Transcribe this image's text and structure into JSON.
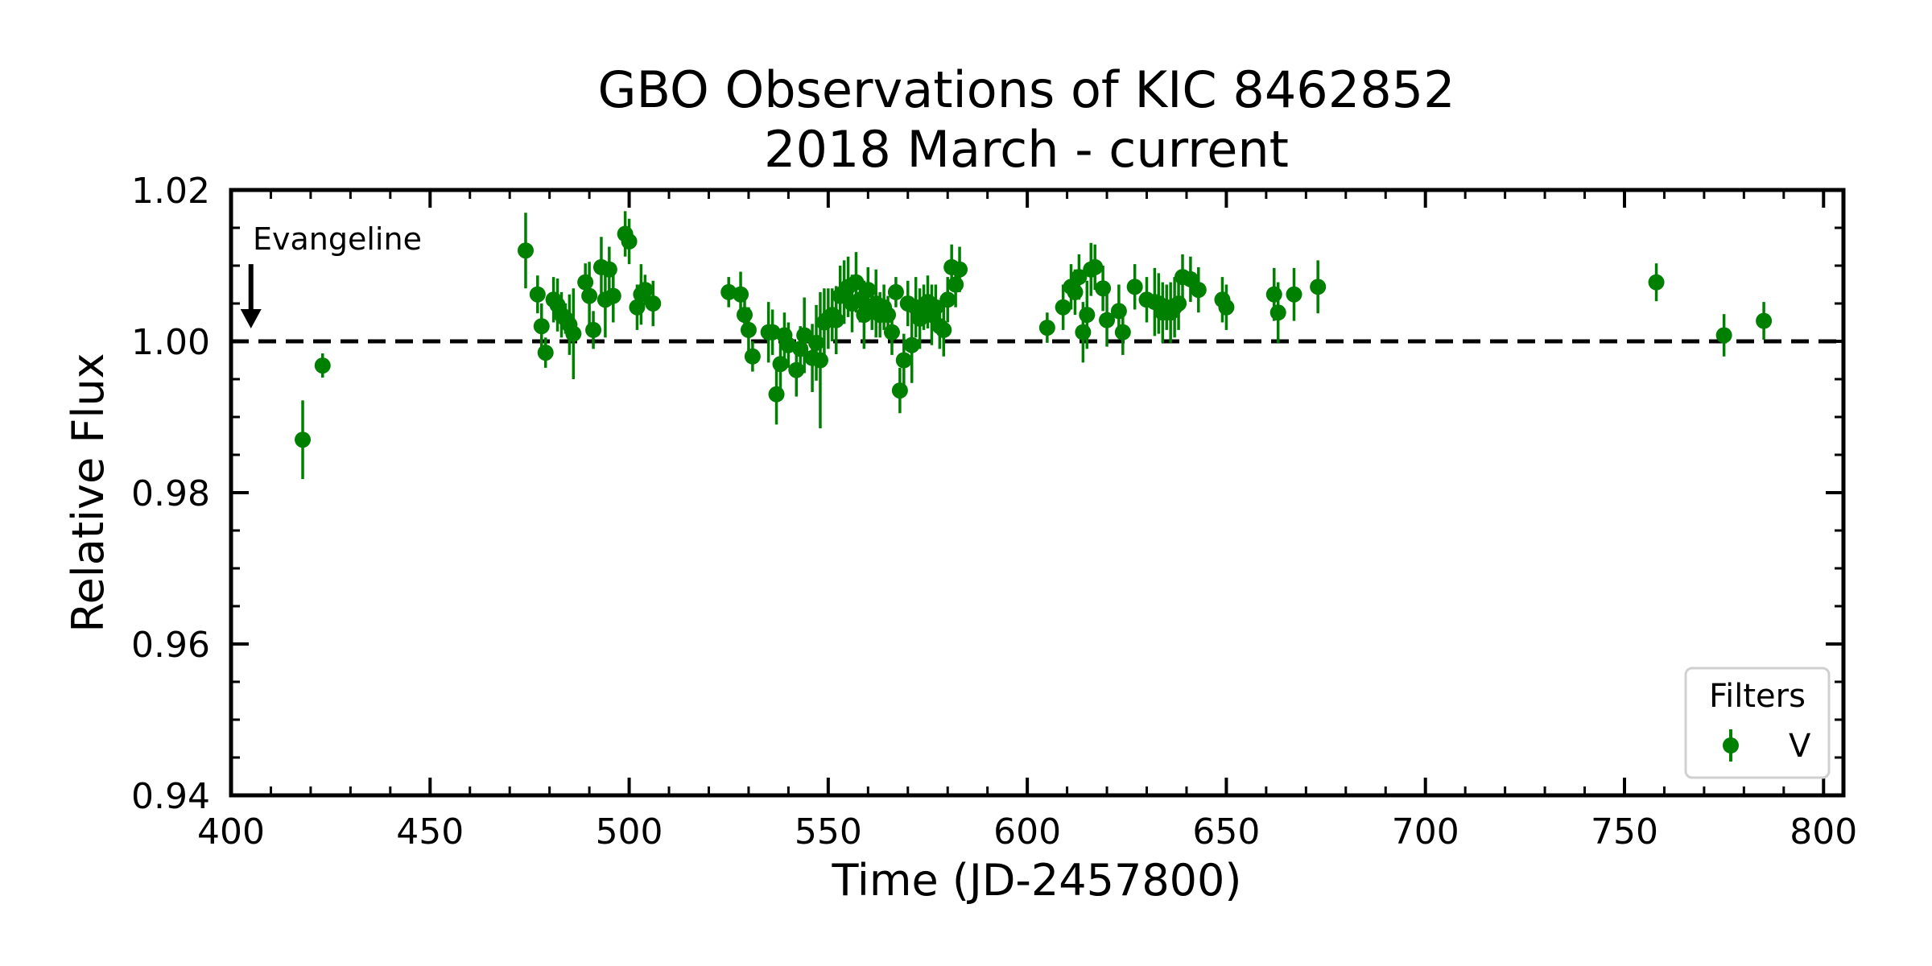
{
  "chart_data": {
    "type": "scatter",
    "title": [
      "GBO Observations of KIC 8462852",
      "2018 March - current"
    ],
    "xlabel": "Time (JD-2457800)",
    "ylabel": "Relative Flux",
    "xlim": [
      400,
      805
    ],
    "ylim": [
      0.94,
      1.02
    ],
    "xticks": [
      400,
      450,
      500,
      550,
      600,
      650,
      700,
      750,
      800
    ],
    "xtick_labels": [
      "400",
      "450",
      "500",
      "550",
      "600",
      "650",
      "700",
      "750",
      "800"
    ],
    "yticks": [
      0.94,
      0.96,
      0.98,
      1.0,
      1.02
    ],
    "ytick_labels": [
      "0.94",
      "0.96",
      "0.98",
      "1.00",
      "1.02"
    ],
    "grid": false,
    "reference_line": {
      "y": 1.0,
      "style": "dashed",
      "color": "#000000"
    },
    "annotation": {
      "text": "Evangeline",
      "x": 405,
      "arrow_from_y": 1.0102,
      "arrow_to_y": 1.0017
    },
    "legend": {
      "title": "Filters",
      "position": "lower-right"
    },
    "series": [
      {
        "name": "V",
        "color": "#008000",
        "points": [
          [
            418,
            0.987,
            0.0052
          ],
          [
            423,
            0.9968,
            0.0016
          ],
          [
            474,
            1.012,
            0.005
          ],
          [
            477,
            1.0062,
            0.0025
          ],
          [
            478,
            1.002,
            0.003
          ],
          [
            479,
            0.9985,
            0.002
          ],
          [
            481,
            1.0055,
            0.003
          ],
          [
            482,
            1.0048,
            0.0035
          ],
          [
            483,
            1.0035,
            0.003
          ],
          [
            484,
            1.003,
            0.002
          ],
          [
            485,
            1.0022,
            0.004
          ],
          [
            486,
            1.001,
            0.006
          ],
          [
            489,
            1.0078,
            0.0025
          ],
          [
            490,
            1.006,
            0.0045
          ],
          [
            491,
            1.0015,
            0.0025
          ],
          [
            493,
            1.0098,
            0.004
          ],
          [
            494,
            1.0055,
            0.005
          ],
          [
            495,
            1.0095,
            0.003
          ],
          [
            496,
            1.006,
            0.0035
          ],
          [
            499,
            1.0142,
            0.003
          ],
          [
            500,
            1.0132,
            0.003
          ],
          [
            502,
            1.0045,
            0.003
          ],
          [
            503,
            1.0062,
            0.004
          ],
          [
            504,
            1.0068,
            0.002
          ],
          [
            506,
            1.005,
            0.003
          ],
          [
            525,
            1.0065,
            0.002
          ],
          [
            528,
            1.0062,
            0.003
          ],
          [
            529,
            1.0035,
            0.0025
          ],
          [
            530,
            1.0015,
            0.003
          ],
          [
            531,
            0.998,
            0.002
          ],
          [
            535,
            1.0012,
            0.004
          ],
          [
            536,
            1.0012,
            0.003
          ],
          [
            537,
            0.993,
            0.004
          ],
          [
            538,
            0.997,
            0.0045
          ],
          [
            539,
            1.0008,
            0.003
          ],
          [
            540,
            0.9995,
            0.003
          ],
          [
            542,
            0.9962,
            0.0035
          ],
          [
            543,
            0.999,
            0.003
          ],
          [
            544,
            1.0008,
            0.005
          ],
          [
            546,
            0.9978,
            0.0045
          ],
          [
            547,
            0.9998,
            0.005
          ],
          [
            548,
            0.9975,
            0.009
          ],
          [
            549,
            1.0025,
            0.0045
          ],
          [
            550,
            1.003,
            0.004
          ],
          [
            551,
            1.0035,
            0.0035
          ],
          [
            552,
            1.0028,
            0.0045
          ],
          [
            553,
            1.006,
            0.004
          ],
          [
            554,
            1.0065,
            0.0042
          ],
          [
            555,
            1.0072,
            0.004
          ],
          [
            556,
            1.005,
            0.0038
          ],
          [
            557,
            1.0078,
            0.004
          ],
          [
            558,
            1.0055,
            0.003
          ],
          [
            559,
            1.0035,
            0.0045
          ],
          [
            560,
            1.0068,
            0.003
          ],
          [
            561,
            1.0045,
            0.003
          ],
          [
            562,
            1.005,
            0.0045
          ],
          [
            563,
            1.0035,
            0.003
          ],
          [
            564,
            1.0045,
            0.003
          ],
          [
            565,
            1.0035,
            0.0025
          ],
          [
            566,
            1.0012,
            0.003
          ],
          [
            567,
            1.0065,
            0.002
          ],
          [
            568,
            0.9935,
            0.003
          ],
          [
            569,
            0.9975,
            0.0035
          ],
          [
            570,
            1.005,
            0.003
          ],
          [
            571,
            0.9995,
            0.005
          ],
          [
            572,
            1.0045,
            0.004
          ],
          [
            573,
            1.003,
            0.004
          ],
          [
            574,
            1.0045,
            0.003
          ],
          [
            575,
            1.0052,
            0.0035
          ],
          [
            576,
            1.0035,
            0.004
          ],
          [
            577,
            1.0045,
            0.003
          ],
          [
            578,
            1.002,
            0.003
          ],
          [
            579,
            1.0015,
            0.0035
          ],
          [
            580,
            1.0055,
            0.003
          ],
          [
            581,
            1.0098,
            0.003
          ],
          [
            582,
            1.0075,
            0.003
          ],
          [
            583,
            1.0095,
            0.003
          ],
          [
            605,
            1.0018,
            0.002
          ],
          [
            609,
            1.0045,
            0.003
          ],
          [
            611,
            1.0072,
            0.003
          ],
          [
            612,
            1.0065,
            0.003
          ],
          [
            613,
            1.0085,
            0.003
          ],
          [
            614,
            1.0012,
            0.004
          ],
          [
            615,
            1.0035,
            0.0045
          ],
          [
            616,
            1.0095,
            0.0035
          ],
          [
            617,
            1.0098,
            0.003
          ],
          [
            619,
            1.007,
            0.003
          ],
          [
            620,
            1.0028,
            0.0035
          ],
          [
            623,
            1.004,
            0.0035
          ],
          [
            624,
            1.0012,
            0.003
          ],
          [
            627,
            1.0072,
            0.003
          ],
          [
            630,
            1.0055,
            0.003
          ],
          [
            632,
            1.0052,
            0.0045
          ],
          [
            633,
            1.005,
            0.004
          ],
          [
            634,
            1.0038,
            0.004
          ],
          [
            635,
            1.0045,
            0.003
          ],
          [
            636,
            1.0038,
            0.004
          ],
          [
            637,
            1.0045,
            0.004
          ],
          [
            638,
            1.005,
            0.0035
          ],
          [
            639,
            1.0085,
            0.003
          ],
          [
            641,
            1.0082,
            0.003
          ],
          [
            643,
            1.0068,
            0.003
          ],
          [
            649,
            1.0055,
            0.003
          ],
          [
            650,
            1.0045,
            0.003
          ],
          [
            662,
            1.0062,
            0.0035
          ],
          [
            663,
            1.0038,
            0.004
          ],
          [
            667,
            1.0062,
            0.0035
          ],
          [
            673,
            1.0072,
            0.0035
          ],
          [
            758,
            1.0078,
            0.0025
          ],
          [
            775,
            1.0008,
            0.0028
          ],
          [
            785,
            1.0027,
            0.0025
          ]
        ]
      }
    ]
  }
}
